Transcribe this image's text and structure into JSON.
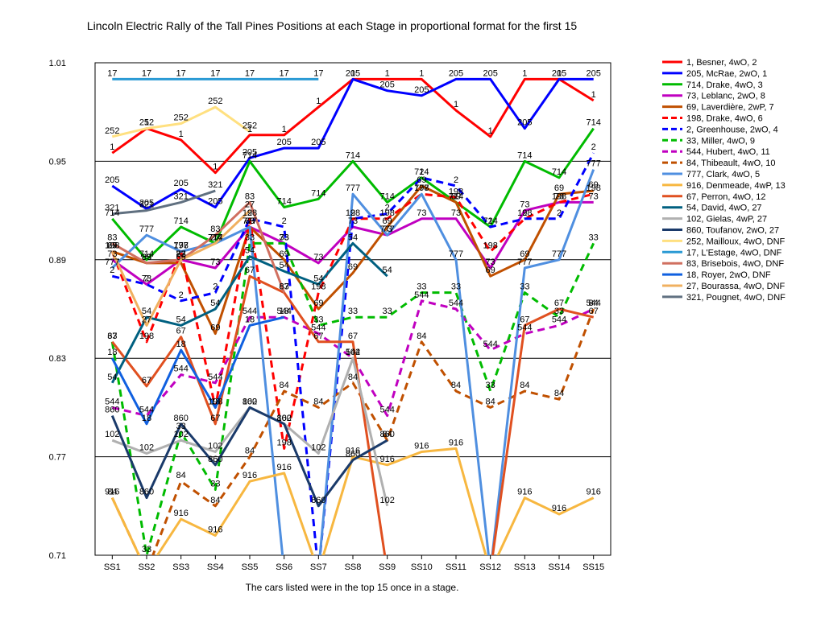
{
  "chart_data": {
    "type": "line",
    "title": "Lincoln Electric Rally of the Tall Pines  Positions at each Stage in proportional format for the first 15",
    "footnote": "The cars listed were in the top 15 once in a stage.",
    "x": [
      "SS1",
      "SS2",
      "SS3",
      "SS4",
      "SS5",
      "SS6",
      "SS7",
      "SS8",
      "SS9",
      "SS10",
      "SS11",
      "SS12",
      "SS13",
      "SS14",
      "SS15"
    ],
    "ylim": [
      0.71,
      1.01
    ],
    "yticks": [
      "1.01",
      "0.95",
      "0.89",
      "0.83",
      "0.77",
      "0.71"
    ],
    "grid": true,
    "legend_position": "right",
    "series": [
      {
        "name": "1, Besner, 4wO, 2",
        "label": "1",
        "color": "#ff0000",
        "dash": false,
        "values": [
          0.955,
          0.97,
          0.963,
          0.943,
          0.966,
          0.966,
          0.983,
          1.0,
          1.0,
          1.0,
          0.981,
          0.965,
          1.0,
          1.0,
          0.987
        ]
      },
      {
        "name": "205, McRae, 2wO, 1",
        "label": "205",
        "color": "#0000ff",
        "dash": false,
        "values": [
          0.935,
          0.921,
          0.933,
          0.922,
          0.952,
          0.958,
          0.958,
          1.0,
          0.993,
          0.99,
          1.0,
          1.0,
          0.97,
          1.0,
          1.0
        ]
      },
      {
        "name": "714, Drake, 4wO, 3",
        "label": "714",
        "color": "#00bb00",
        "dash": false,
        "values": [
          0.915,
          0.89,
          0.91,
          0.9,
          0.95,
          0.922,
          0.927,
          0.95,
          0.925,
          0.94,
          0.925,
          0.91,
          0.95,
          0.94,
          0.97
        ]
      },
      {
        "name": "73, Leblanc, 2wO, 8",
        "label": "73",
        "color": "#c000c0",
        "dash": false,
        "values": [
          0.89,
          0.875,
          0.89,
          0.885,
          0.91,
          0.9,
          0.888,
          0.91,
          0.905,
          0.915,
          0.915,
          0.885,
          0.92,
          0.925,
          0.925
        ]
      },
      {
        "name": "69, Laverdière, 2wP, 7",
        "label": "69",
        "color": "#c05000",
        "dash": false,
        "values": [
          0.895,
          0.888,
          0.888,
          0.845,
          0.91,
          0.89,
          0.86,
          0.882,
          0.91,
          0.935,
          0.925,
          0.88,
          0.89,
          0.93,
          0.932
        ]
      },
      {
        "name": "198, Drake, 4wO, 6",
        "label": "198",
        "color": "#ff0000",
        "dash": true,
        "values": [
          0.895,
          0.84,
          0.895,
          0.8,
          0.915,
          0.775,
          0.87,
          0.915,
          0.915,
          0.93,
          0.928,
          0.895,
          0.915,
          0.925,
          0.93
        ]
      },
      {
        "name": "2, Greenhouse, 2wO, 4",
        "label": "2",
        "color": "#0000ff",
        "dash": true,
        "values": [
          0.88,
          0.875,
          0.865,
          0.87,
          0.915,
          0.91,
          0.7,
          0.915,
          0.918,
          0.94,
          0.935,
          0.91,
          0.915,
          0.915,
          0.955
        ]
      },
      {
        "name": "33, Miller, 4wO, 9",
        "label": "33",
        "color": "#00bb00",
        "dash": true,
        "values": [
          0.84,
          0.71,
          0.785,
          0.75,
          0.9,
          0.9,
          0.85,
          0.855,
          0.855,
          0.87,
          0.87,
          0.81,
          0.87,
          0.855,
          0.9
        ]
      },
      {
        "name": "544, Hubert, 4wO, 11",
        "label": "544",
        "color": "#c000c0",
        "dash": true,
        "values": [
          0.8,
          0.795,
          0.82,
          0.815,
          0.855,
          0.855,
          0.845,
          0.83,
          0.795,
          0.865,
          0.86,
          0.835,
          0.845,
          0.85,
          0.86
        ]
      },
      {
        "name": "84, Thibeault, 4wO, 10",
        "label": "84",
        "color": "#c05000",
        "dash": true,
        "values": [
          0.745,
          0.7,
          0.755,
          0.74,
          0.77,
          0.81,
          0.8,
          0.815,
          0.78,
          0.84,
          0.81,
          0.8,
          0.81,
          0.805,
          0.86
        ]
      },
      {
        "name": "777, Clark, 4wO, 5",
        "label": "777",
        "color": "#4f8fe0",
        "dash": false,
        "values": [
          0.885,
          0.905,
          0.895,
          0.9,
          0.91,
          0.7,
          0.7,
          0.93,
          0.905,
          0.93,
          0.89,
          0.7,
          0.885,
          0.89,
          0.945
        ]
      },
      {
        "name": "916, Denmeade, 4wP, 13",
        "label": "916",
        "color": "#f7b740",
        "dash": false,
        "values": [
          0.745,
          0.7,
          0.732,
          0.722,
          0.755,
          0.76,
          0.7,
          0.77,
          0.765,
          0.773,
          0.775,
          0.7,
          0.745,
          0.735,
          0.745
        ]
      },
      {
        "name": "67, Perron, 4wO, 12",
        "label": "67",
        "color": "#e05020",
        "dash": false,
        "values": [
          0.84,
          0.813,
          0.843,
          0.79,
          0.88,
          0.87,
          0.84,
          0.84,
          0.7,
          0.7,
          0.7,
          0.7,
          0.85,
          0.86,
          0.855
        ]
      },
      {
        "name": "54, David, 4wO, 27",
        "label": "54",
        "color": "#006080",
        "dash": false,
        "values": [
          0.815,
          0.855,
          0.85,
          0.86,
          0.892,
          0.883,
          0.875,
          0.9,
          0.88,
          null,
          null,
          null,
          null,
          null,
          null
        ]
      },
      {
        "name": "102, Gielas, 4wP, 27",
        "label": "102",
        "color": "#b0b0b0",
        "dash": false,
        "values": [
          0.78,
          0.772,
          0.78,
          0.773,
          0.8,
          0.79,
          0.772,
          0.83,
          0.74,
          null,
          null,
          null,
          null,
          null,
          null
        ]
      },
      {
        "name": "860, Toufanov, 2wO, 27",
        "label": "860",
        "color": "#1a3a6a",
        "dash": false,
        "values": [
          0.795,
          0.745,
          0.79,
          0.765,
          0.8,
          0.79,
          0.74,
          0.768,
          0.78,
          null,
          null,
          null,
          null,
          null,
          null
        ]
      },
      {
        "name": "252, Mailloux, 4wO, DNF",
        "label": "252",
        "color": "#ffe080",
        "dash": false,
        "values": [
          0.965,
          0.97,
          0.973,
          0.983,
          0.968,
          null,
          null,
          null,
          null,
          null,
          null,
          null,
          null,
          null,
          null
        ]
      },
      {
        "name": "17, L'Estage, 4wO, DNF",
        "label": "17",
        "color": "#2a9ad4",
        "dash": false,
        "values": [
          1.0,
          1.0,
          1.0,
          1.0,
          1.0,
          1.0,
          1.0,
          null,
          null,
          null,
          null,
          null,
          null,
          null,
          null
        ]
      },
      {
        "name": "83, Brisebois, 4wO, DNF",
        "label": "83",
        "color": "#d07060",
        "dash": false,
        "values": [
          0.9,
          0.888,
          0.89,
          0.905,
          0.925,
          0.87,
          null,
          null,
          null,
          null,
          null,
          null,
          null,
          null,
          null
        ]
      },
      {
        "name": "18, Royer, 2wO, DNF",
        "label": "18",
        "color": "#1060e0",
        "dash": false,
        "values": [
          0.83,
          0.79,
          0.835,
          0.8,
          0.85,
          0.855,
          null,
          null,
          null,
          null,
          null,
          null,
          null,
          null,
          null
        ]
      },
      {
        "name": "27, Bourassa, 4wO, DNF",
        "label": "27",
        "color": "#f0b060",
        "dash": false,
        "values": [
          0.895,
          0.85,
          0.89,
          0.9,
          0.92,
          null,
          null,
          null,
          null,
          null,
          null,
          null,
          null,
          null,
          null
        ]
      },
      {
        "name": "321, Pougnet, 4wO, DNF",
        "label": "321",
        "color": "#607080",
        "dash": false,
        "values": [
          0.918,
          0.92,
          0.925,
          0.932,
          null,
          null,
          null,
          null,
          null,
          null,
          null,
          null,
          null,
          null,
          null
        ]
      }
    ]
  }
}
